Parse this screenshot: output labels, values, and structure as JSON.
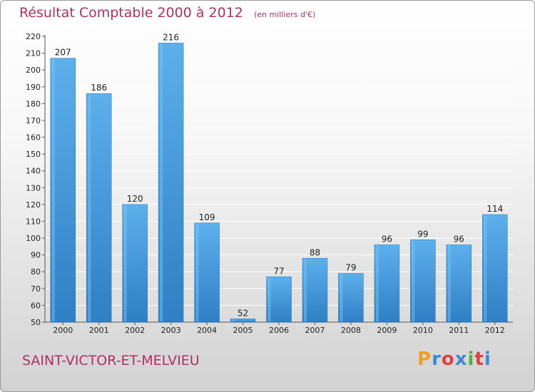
{
  "chart_data": {
    "type": "bar",
    "title": "Résultat Comptable 2000 à 2012",
    "subtitle": "(en milliers d'€)",
    "categories": [
      "2000",
      "2001",
      "2002",
      "2003",
      "2004",
      "2005",
      "2006",
      "2007",
      "2008",
      "2009",
      "2010",
      "2011",
      "2012"
    ],
    "values": [
      207,
      186,
      120,
      216,
      109,
      52,
      77,
      88,
      79,
      96,
      99,
      96,
      114
    ],
    "data_labels": [
      "207",
      "186",
      "120",
      "216",
      "109",
      "52",
      "77",
      "88",
      "79",
      "96",
      "99",
      "96",
      "114"
    ],
    "ylim": [
      50,
      220
    ],
    "yticks": [
      50,
      60,
      70,
      80,
      90,
      100,
      110,
      120,
      130,
      140,
      150,
      160,
      170,
      180,
      190,
      200,
      210,
      220
    ],
    "ytick_labels": [
      "50",
      "60",
      "70",
      "80",
      "90",
      "100",
      "110",
      "120",
      "130",
      "140",
      "150",
      "160",
      "170",
      "180",
      "190",
      "200",
      "210",
      "220"
    ],
    "grid": true,
    "bar_color": "#4a9fe0",
    "xlabel": "",
    "ylabel": ""
  },
  "footer": {
    "commune": "SAINT-VICTOR-ET-MELVIEU",
    "logo_letters": [
      "P",
      "r",
      "o",
      "x",
      "i",
      "t",
      "i"
    ],
    "logo_colors": [
      "#f0a020",
      "#3a8ad8",
      "#e04040",
      "#3a8ad8",
      "#50b040",
      "#e04040",
      "#3a8ad8"
    ]
  },
  "colors": {
    "title": "#b03060",
    "grid": "#ffffff"
  }
}
